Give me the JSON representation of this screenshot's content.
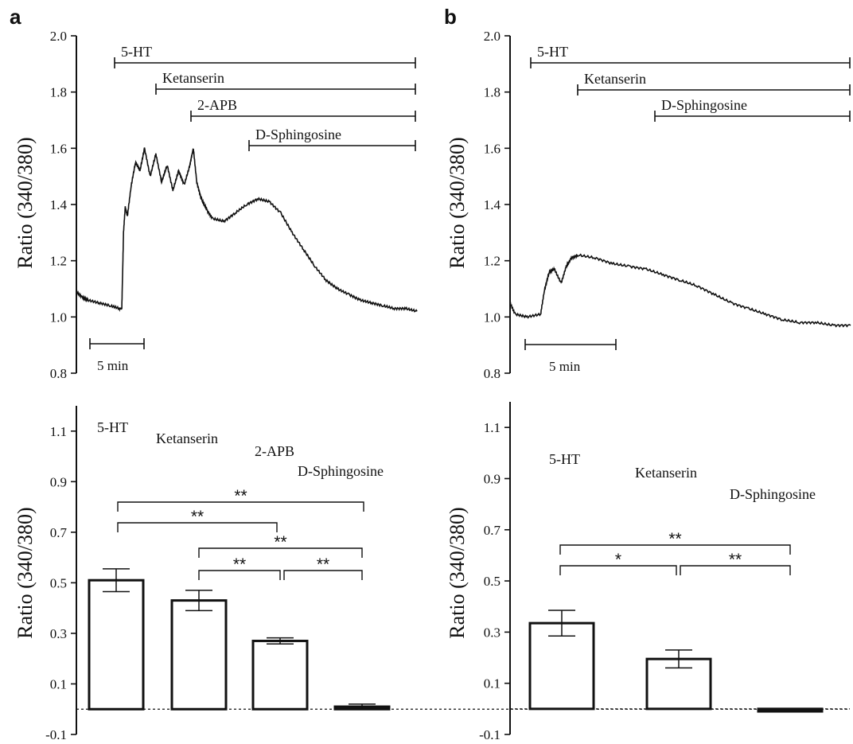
{
  "panel_labels": [
    "a",
    "b"
  ],
  "chart_data": [
    {
      "id": "a-trace",
      "type": "line",
      "ylabel": "Ratio (340/380)",
      "ylim": [
        0.8,
        2.0
      ],
      "yticks": [
        "0.8",
        "1.0",
        "1.2",
        "1.4",
        "1.6",
        "1.8",
        "2.0"
      ],
      "scale_bar": "5 min",
      "treatments": [
        "5-HT",
        "Ketanserin",
        "2-APB",
        "D-Sphingosine"
      ],
      "series": [
        {
          "x": [
            0,
            0.5,
            1,
            2,
            3,
            3.8,
            4,
            4.15,
            4.3,
            4.5,
            4.8,
            5.2,
            5.6,
            6.0,
            6.5,
            7.0,
            7.5,
            8.0,
            8.5,
            9.0,
            9.5,
            10.0,
            10.3,
            10.6,
            11.0,
            11.5,
            12,
            13,
            14,
            15,
            16,
            17,
            18,
            19,
            20,
            21,
            22,
            23,
            24,
            25,
            26,
            27,
            28,
            29,
            30
          ],
          "y": [
            1.09,
            1.07,
            1.06,
            1.05,
            1.04,
            1.03,
            1.03,
            1.3,
            1.39,
            1.36,
            1.46,
            1.55,
            1.52,
            1.6,
            1.5,
            1.58,
            1.48,
            1.54,
            1.45,
            1.52,
            1.47,
            1.54,
            1.6,
            1.48,
            1.42,
            1.38,
            1.35,
            1.34,
            1.37,
            1.4,
            1.42,
            1.41,
            1.37,
            1.3,
            1.24,
            1.18,
            1.13,
            1.1,
            1.08,
            1.06,
            1.05,
            1.04,
            1.03,
            1.03,
            1.02
          ]
        }
      ]
    },
    {
      "id": "b-trace",
      "type": "line",
      "ylabel": "Ratio (340/380)",
      "ylim": [
        0.8,
        2.0
      ],
      "yticks": [
        "0.8",
        "1.0",
        "1.2",
        "1.4",
        "1.6",
        "1.8",
        "2.0"
      ],
      "scale_bar": "5 min",
      "treatments": [
        "5-HT",
        "Ketanserin",
        "D-Sphingosine"
      ],
      "series": [
        {
          "x": [
            0,
            0.3,
            1,
            1.8,
            2.0,
            2.3,
            2.6,
            3.0,
            3.3,
            3.6,
            4.0,
            5,
            6,
            7,
            8,
            9,
            10,
            11,
            12,
            13,
            14,
            15,
            16,
            17,
            18,
            19,
            20
          ],
          "y": [
            1.05,
            1.01,
            1.0,
            1.01,
            1.09,
            1.16,
            1.17,
            1.12,
            1.18,
            1.21,
            1.22,
            1.21,
            1.19,
            1.18,
            1.17,
            1.15,
            1.13,
            1.11,
            1.08,
            1.05,
            1.03,
            1.01,
            0.99,
            0.98,
            0.98,
            0.97,
            0.97
          ]
        }
      ]
    },
    {
      "id": "a-bars",
      "type": "bar",
      "ylabel": "Ratio (340/380)",
      "ylim": [
        -0.1,
        1.2
      ],
      "yticks": [
        "-0.1",
        "0.1",
        "0.3",
        "0.5",
        "0.7",
        "0.9",
        "1.1"
      ],
      "categories": [
        "5-HT",
        "Ketanserin",
        "2-APB",
        "D-Sphingosine"
      ],
      "values": [
        0.51,
        0.43,
        0.27,
        0.01
      ],
      "errors": [
        0.045,
        0.04,
        0.012,
        0.01
      ],
      "significance": [
        "**",
        "**",
        "**",
        "**",
        "**"
      ]
    },
    {
      "id": "b-bars",
      "type": "bar",
      "ylabel": "Ratio (340/380)",
      "ylim": [
        -0.1,
        1.2
      ],
      "yticks": [
        "-0.1",
        "0.1",
        "0.3",
        "0.5",
        "0.7",
        "0.9",
        "1.1"
      ],
      "categories": [
        "5-HT",
        "Ketanserin",
        "D-Sphingosine"
      ],
      "values": [
        0.335,
        0.195,
        -0.01
      ],
      "errors": [
        0.05,
        0.035,
        0.0
      ],
      "significance": [
        "**",
        "*",
        "**"
      ]
    }
  ]
}
